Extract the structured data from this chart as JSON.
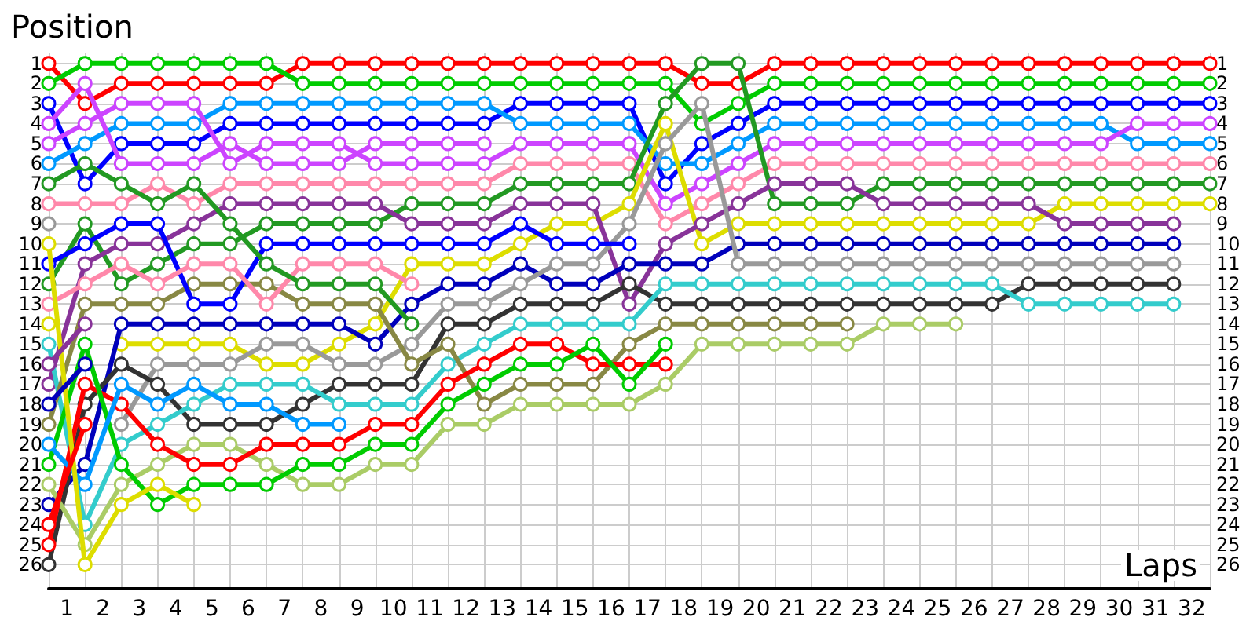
{
  "chart_data": {
    "type": "line",
    "xlabel": "Laps",
    "ylabel": "Position",
    "x": [
      0,
      1,
      2,
      3,
      4,
      5,
      6,
      7,
      8,
      9,
      10,
      11,
      12,
      13,
      14,
      15,
      16,
      17,
      18,
      19,
      20,
      21,
      22,
      23,
      24,
      25,
      26,
      27,
      28,
      29,
      30,
      31,
      32
    ],
    "xlim": [
      0,
      32
    ],
    "xticks": [
      {
        "value": 0.5,
        "label": "1"
      },
      {
        "value": 1.5,
        "label": "2"
      },
      {
        "value": 2.5,
        "label": "3"
      },
      {
        "value": 3.5,
        "label": "4"
      },
      {
        "value": 4.5,
        "label": "5"
      },
      {
        "value": 5.5,
        "label": "6"
      },
      {
        "value": 6.5,
        "label": "7"
      },
      {
        "value": 7.5,
        "label": "8"
      },
      {
        "value": 8.5,
        "label": "9"
      },
      {
        "value": 9.5,
        "label": "10"
      },
      {
        "value": 10.5,
        "label": "11"
      },
      {
        "value": 11.5,
        "label": "12"
      },
      {
        "value": 12.5,
        "label": "13"
      },
      {
        "value": 13.5,
        "label": "14"
      },
      {
        "value": 14.5,
        "label": "15"
      },
      {
        "value": 15.5,
        "label": "16"
      },
      {
        "value": 16.5,
        "label": "17"
      },
      {
        "value": 17.5,
        "label": "18"
      },
      {
        "value": 18.5,
        "label": "19"
      },
      {
        "value": 19.5,
        "label": "20"
      },
      {
        "value": 20.5,
        "label": "21"
      },
      {
        "value": 21.5,
        "label": "22"
      },
      {
        "value": 22.5,
        "label": "23"
      },
      {
        "value": 23.5,
        "label": "24"
      },
      {
        "value": 24.5,
        "label": "25"
      },
      {
        "value": 25.5,
        "label": "26"
      },
      {
        "value": 26.5,
        "label": "27"
      },
      {
        "value": 27.5,
        "label": "28"
      },
      {
        "value": 28.5,
        "label": "29"
      },
      {
        "value": 29.5,
        "label": "30"
      },
      {
        "value": 30.5,
        "label": "31"
      },
      {
        "value": 31.5,
        "label": "32"
      }
    ],
    "ylim": [
      27.2,
      0.5
    ],
    "yticks": [
      1,
      2,
      3,
      4,
      5,
      6,
      7,
      8,
      9,
      10,
      11,
      12,
      13,
      14,
      15,
      16,
      17,
      18,
      19,
      20,
      21,
      22,
      23,
      24,
      25,
      26
    ],
    "y2lim": [
      27.2,
      0.5
    ],
    "y2ticks": [
      1,
      2,
      3,
      4,
      5,
      6,
      7,
      8,
      9,
      10,
      11,
      12,
      13,
      14,
      15,
      16,
      17,
      18,
      19,
      20,
      21,
      22,
      23,
      24,
      25,
      26
    ],
    "grid": true,
    "marker": "circle",
    "line_style": "solid",
    "series": [
      {
        "color": "#ff0000",
        "values": [
          1,
          3,
          2,
          2,
          2,
          2,
          2,
          1,
          1,
          1,
          1,
          1,
          1,
          1,
          1,
          1,
          1,
          1,
          2,
          2,
          1,
          1,
          1,
          1,
          1,
          1,
          1,
          1,
          1,
          1,
          1,
          1,
          1
        ]
      },
      {
        "color": "#00cc00",
        "values": [
          2,
          1,
          1,
          1,
          1,
          1,
          1,
          2,
          2,
          2,
          2,
          2,
          2,
          2,
          2,
          2,
          2,
          2,
          4,
          3,
          2,
          2,
          2,
          2,
          2,
          2,
          2,
          2,
          2,
          2,
          2,
          2,
          2
        ]
      },
      {
        "color": "#0000ff",
        "values": [
          3,
          7,
          5,
          5,
          5,
          4,
          4,
          4,
          4,
          4,
          4,
          4,
          4,
          3,
          3,
          3,
          3,
          7,
          5,
          4,
          3,
          3,
          3,
          3,
          3,
          3,
          3,
          3,
          3,
          3,
          3,
          3,
          3
        ]
      },
      {
        "color": "#0099ff",
        "values": [
          6,
          5,
          4,
          4,
          4,
          3,
          3,
          3,
          3,
          3,
          3,
          3,
          3,
          4,
          4,
          4,
          4,
          6,
          6,
          5,
          4,
          4,
          4,
          4,
          4,
          4,
          4,
          4,
          4,
          4,
          5,
          5,
          5
        ]
      },
      {
        "color": "#cc44ff",
        "values": [
          5,
          4,
          3,
          3,
          3,
          6,
          5,
          5,
          5,
          6,
          6,
          6,
          6,
          5,
          5,
          5,
          5,
          8,
          7,
          6,
          5,
          5,
          5,
          5,
          5,
          5,
          5,
          5,
          5,
          5,
          4,
          4,
          4
        ]
      },
      {
        "color": "#ff88aa",
        "values": [
          8,
          8,
          8,
          7,
          8,
          7,
          7,
          7,
          7,
          7,
          7,
          7,
          7,
          6,
          6,
          6,
          6,
          9,
          8,
          7,
          6,
          6,
          6,
          6,
          6,
          6,
          6,
          6,
          6,
          6,
          6,
          6,
          6
        ]
      },
      {
        "color": "#229922",
        "values": [
          12,
          9,
          12,
          11,
          10,
          10,
          9,
          9,
          9,
          9,
          8,
          8,
          8,
          7,
          7,
          7,
          7,
          3,
          1,
          1,
          8,
          8,
          8,
          7,
          7,
          7,
          7,
          7,
          7,
          7,
          7,
          7,
          7
        ]
      },
      {
        "color": "#dddd00",
        "values": [
          14,
          null,
          15,
          15,
          15,
          15,
          16,
          16,
          15,
          14,
          11,
          11,
          11,
          10,
          9,
          9,
          8,
          4,
          10,
          9,
          9,
          9,
          9,
          9,
          9,
          9,
          9,
          9,
          8,
          8,
          8,
          8,
          8
        ]
      },
      {
        "color": "#883399",
        "values": [
          17,
          11,
          10,
          10,
          9,
          8,
          8,
          8,
          8,
          8,
          9,
          9,
          9,
          8,
          8,
          8,
          13,
          10,
          9,
          8,
          7,
          7,
          7,
          8,
          8,
          8,
          8,
          8,
          9,
          9,
          9,
          9,
          null
        ]
      },
      {
        "color": "#0000bb",
        "values": [
          23,
          21,
          14,
          14,
          14,
          14,
          14,
          14,
          14,
          15,
          13,
          12,
          12,
          11,
          12,
          12,
          11,
          11,
          11,
          10,
          10,
          10,
          10,
          10,
          10,
          10,
          10,
          10,
          10,
          10,
          10,
          10,
          null
        ]
      },
      {
        "color": "#999999",
        "values": [
          9,
          null,
          19,
          16,
          16,
          16,
          15,
          15,
          16,
          16,
          15,
          13,
          13,
          12,
          11,
          11,
          9,
          5,
          3,
          11,
          11,
          11,
          11,
          11,
          11,
          11,
          11,
          11,
          11,
          11,
          11,
          11,
          null
        ]
      },
      {
        "color": "#333333",
        "values": [
          26,
          18,
          16,
          17,
          19,
          19,
          19,
          18,
          17,
          17,
          17,
          14,
          14,
          13,
          13,
          13,
          12,
          13,
          13,
          13,
          13,
          13,
          13,
          13,
          13,
          13,
          13,
          12,
          12,
          12,
          12,
          12,
          null
        ]
      },
      {
        "color": "#33cccc",
        "values": [
          15,
          24,
          20,
          19,
          18,
          17,
          17,
          17,
          18,
          18,
          18,
          16,
          15,
          14,
          14,
          14,
          14,
          12,
          12,
          12,
          12,
          12,
          12,
          12,
          12,
          12,
          12,
          13,
          13,
          13,
          13,
          13,
          null
        ]
      },
      {
        "color": "#888844",
        "values": [
          19,
          13,
          13,
          13,
          12,
          12,
          12,
          13,
          13,
          13,
          16,
          15,
          18,
          17,
          17,
          17,
          15,
          14,
          14,
          14,
          14,
          14,
          14,
          null,
          null,
          null,
          null,
          null,
          null,
          null,
          null,
          null,
          null
        ]
      },
      {
        "color": "#aacc66",
        "values": [
          22,
          25,
          22,
          21,
          20,
          20,
          21,
          22,
          22,
          21,
          21,
          19,
          19,
          18,
          18,
          18,
          18,
          17,
          15,
          15,
          15,
          15,
          15,
          14,
          14,
          14,
          null,
          null,
          null,
          null,
          null,
          null,
          null
        ]
      },
      {
        "color": "#ff0000",
        "values": [
          25,
          17,
          18,
          20,
          21,
          21,
          20,
          20,
          20,
          19,
          19,
          17,
          16,
          15,
          15,
          16,
          16,
          16,
          null,
          null,
          null,
          null,
          null,
          null,
          null,
          null,
          null,
          null,
          null,
          null,
          null,
          null,
          null
        ]
      },
      {
        "color": "#00cc00",
        "values": [
          21,
          15,
          21,
          23,
          22,
          22,
          22,
          21,
          21,
          20,
          20,
          18,
          17,
          16,
          16,
          15,
          17,
          15,
          null,
          null,
          null,
          null,
          null,
          null,
          null,
          null,
          null,
          null,
          null,
          null,
          null,
          null,
          null
        ]
      },
      {
        "color": "#0000ff",
        "values": [
          11,
          10,
          9,
          9,
          13,
          13,
          10,
          10,
          10,
          10,
          10,
          10,
          10,
          9,
          10,
          10,
          10,
          null,
          null,
          null,
          null,
          null,
          null,
          null,
          null,
          null,
          null,
          null,
          null,
          null,
          null,
          null,
          null
        ]
      },
      {
        "color": "#cc44ff",
        "values": [
          4,
          2,
          6,
          6,
          6,
          5,
          6,
          6,
          6,
          5,
          5,
          5,
          5,
          null,
          null,
          null,
          null,
          null,
          null,
          null,
          null,
          null,
          null,
          null,
          null,
          null,
          null,
          null,
          null,
          null,
          null,
          null,
          null
        ]
      },
      {
        "color": "#ff88aa",
        "values": [
          13,
          12,
          11,
          12,
          11,
          11,
          13,
          11,
          11,
          11,
          12,
          null,
          null,
          null,
          null,
          null,
          null,
          null,
          null,
          null,
          null,
          null,
          null,
          null,
          null,
          null,
          null,
          null,
          null,
          null,
          null,
          null,
          null
        ]
      },
      {
        "color": "#229922",
        "values": [
          7,
          6,
          7,
          8,
          7,
          9,
          11,
          12,
          12,
          12,
          14,
          null,
          null,
          null,
          null,
          null,
          null,
          null,
          null,
          null,
          null,
          null,
          null,
          null,
          null,
          null,
          null,
          null,
          null,
          null,
          null,
          null,
          null
        ]
      },
      {
        "color": "#0099ff",
        "values": [
          20,
          22,
          17,
          18,
          17,
          18,
          18,
          19,
          19,
          null,
          null,
          null,
          null,
          null,
          null,
          null,
          null,
          null,
          null,
          null,
          null,
          null,
          null,
          null,
          null,
          null,
          null,
          null,
          null,
          null,
          null,
          null,
          null
        ]
      },
      {
        "color": "#dddd00",
        "values": [
          10,
          26,
          23,
          22,
          23,
          null,
          null,
          null,
          null,
          null,
          null,
          null,
          null,
          null,
          null,
          null,
          null,
          null,
          null,
          null,
          null,
          null,
          null,
          null,
          null,
          null,
          null,
          null,
          null,
          null,
          null,
          null,
          null
        ]
      },
      {
        "color": "#0000bb",
        "values": [
          18,
          16,
          null,
          null,
          null,
          null,
          null,
          null,
          null,
          null,
          null,
          null,
          null,
          null,
          null,
          null,
          null,
          null,
          null,
          null,
          null,
          null,
          null,
          null,
          null,
          null,
          null,
          null,
          null,
          null,
          null,
          null,
          null
        ]
      },
      {
        "color": "#883399",
        "values": [
          16,
          14,
          null,
          null,
          null,
          null,
          null,
          null,
          null,
          null,
          null,
          null,
          null,
          null,
          null,
          null,
          null,
          null,
          null,
          null,
          null,
          null,
          null,
          null,
          null,
          null,
          null,
          null,
          null,
          null,
          null,
          null,
          null
        ]
      },
      {
        "color": "#ff0000",
        "values": [
          24,
          19,
          null,
          null,
          null,
          null,
          null,
          null,
          null,
          null,
          null,
          null,
          null,
          null,
          null,
          null,
          null,
          null,
          null,
          null,
          null,
          null,
          null,
          null,
          null,
          null,
          null,
          null,
          null,
          null,
          null,
          null,
          null
        ]
      }
    ]
  }
}
